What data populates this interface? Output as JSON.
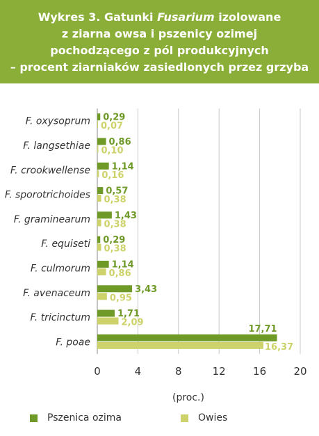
{
  "header": {
    "title_prefix": "Wykres 3. Gatunki ",
    "title_italic": "Fusarium",
    "title_suffix": " izolowane",
    "title_line2": "z ziarna owsa i pszenicy ozimej",
    "title_line3": "pochodzącego z pól produkcyjnych",
    "title_line4": "– procent ziarniaków zasiedlonych przez grzyba",
    "background": "#8aae38"
  },
  "chart_data": {
    "type": "bar",
    "orientation": "horizontal",
    "categories": [
      "F. oxysoprum",
      "F. langsethiae",
      "F. crookwellense",
      "F. sporotrichoides",
      "F. graminearum",
      "F. equiseti",
      "F. culmorum",
      "F. avenaceum",
      "F. tricinctum",
      "F. poae"
    ],
    "series": [
      {
        "name": "Pszenica ozima",
        "color": "#6f9a28",
        "values": [
          0.29,
          0.86,
          1.14,
          0.57,
          1.43,
          0.29,
          1.14,
          3.43,
          1.71,
          17.71
        ],
        "labels": [
          "0,29",
          "0,86",
          "1,14",
          "0,57",
          "1,43",
          "0,29",
          "1,14",
          "3,43",
          "1,71",
          "17,71"
        ]
      },
      {
        "name": "Owies",
        "color": "#cdd36a",
        "values": [
          0.07,
          0.1,
          0.16,
          0.38,
          0.38,
          0.38,
          0.86,
          0.95,
          2.09,
          16.37
        ],
        "labels": [
          "0,07",
          "0,10",
          "0,16",
          "0,38",
          "0,38",
          "0,38",
          "0,86",
          "0,95",
          "2,09",
          "16,37"
        ]
      }
    ],
    "xticks": [
      "0",
      "4",
      "8",
      "12",
      "16",
      "20"
    ],
    "xlim": [
      0,
      20
    ],
    "xlabel": "(proc.)",
    "ylabel": "",
    "grid": true,
    "legend_position": "bottom"
  },
  "legend": [
    {
      "label": "Pszenica ozima",
      "color": "#6f9a28"
    },
    {
      "label": "Owies",
      "color": "#cdd36a"
    }
  ]
}
